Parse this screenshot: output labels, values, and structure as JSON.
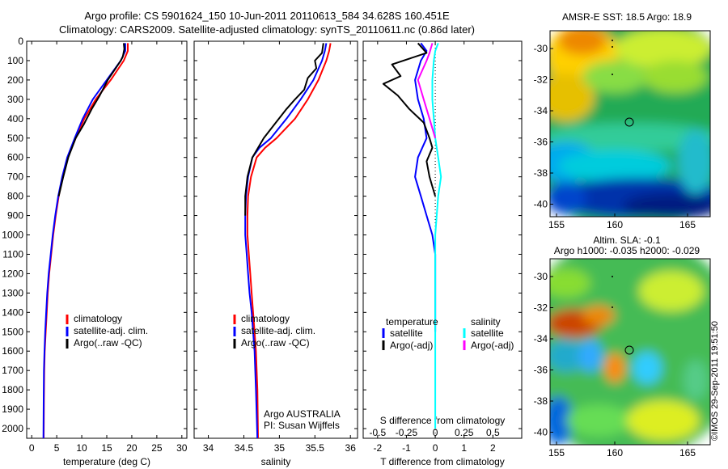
{
  "header": {
    "title_line1": "Argo profile: CS 5901624_150 10-Jun-2011 20110613_584 34.628S 160.451E",
    "title_line2": "Climatology: CARS2009. Satellite-adjusted climatology: synTS_20110611.nc (0.86d later)"
  },
  "stamp": "©IMOS 29-Sep-2011 19:51:50",
  "colors": {
    "climatology": "#ff0000",
    "satellite": "#0000ff",
    "argo": "#000000",
    "sat_s": "#00ffff",
    "argo_s": "#ff00ff"
  },
  "chart_data": [
    {
      "id": "temperature",
      "type": "line",
      "xlabel": "temperature (deg C)",
      "xlim": [
        -1,
        31
      ],
      "xticks": [
        0,
        5,
        10,
        15,
        20,
        25,
        30
      ],
      "ylim": [
        2050,
        0
      ],
      "yticks": [
        0,
        100,
        200,
        300,
        400,
        500,
        600,
        700,
        800,
        900,
        1000,
        1100,
        1200,
        1300,
        1400,
        1500,
        1600,
        1700,
        1800,
        1900,
        2000
      ],
      "legend": [
        "climatology",
        "satellite-adj. clim.",
        "Argo(..raw -QC)"
      ],
      "series": [
        {
          "name": "climatology",
          "color_key": "climatology",
          "x": [
            19.2,
            19.2,
            18.4,
            15.8,
            12.8,
            10.5,
            8.8,
            7.2,
            6.2,
            5.4,
            4.8,
            4.3,
            3.9,
            3.5,
            3.2,
            3.0,
            2.8,
            2.6,
            2.5,
            2.45,
            2.4
          ],
          "y": [
            10,
            50,
            100,
            200,
            300,
            400,
            500,
            600,
            700,
            800,
            900,
            1000,
            1100,
            1200,
            1300,
            1400,
            1500,
            1600,
            1700,
            1850,
            2050
          ]
        },
        {
          "name": "satellite-adj. clim.",
          "color_key": "satellite",
          "x": [
            18.7,
            18.7,
            17.8,
            15.0,
            12.2,
            10.2,
            8.6,
            7.1,
            6.1,
            5.3,
            4.7,
            4.2,
            3.8,
            3.4,
            3.1,
            2.9,
            2.7,
            2.55,
            2.45,
            2.4,
            2.35
          ],
          "y": [
            10,
            50,
            100,
            200,
            300,
            400,
            500,
            600,
            700,
            800,
            900,
            1000,
            1100,
            1200,
            1300,
            1400,
            1500,
            1600,
            1700,
            1850,
            2050
          ]
        },
        {
          "name": "Argo(..raw -QC)",
          "color_key": "argo",
          "x": [
            18.4,
            18.5,
            18.2,
            17.8,
            16.5,
            15.2,
            14.4,
            13.6,
            12.0,
            10.4,
            8.8,
            7.3,
            6.3,
            5.4
          ],
          "y": [
            10,
            40,
            80,
            100,
            150,
            200,
            240,
            280,
            350,
            430,
            500,
            600,
            700,
            800
          ]
        }
      ]
    },
    {
      "id": "salinity",
      "type": "line",
      "xlabel": "salinity",
      "xlim": [
        33.8,
        36.1
      ],
      "xticks": [
        34,
        34.5,
        35,
        35.5,
        36
      ],
      "ylim": [
        2050,
        0
      ],
      "legend": [
        "climatology",
        "satellite-adj. clim.",
        "Argo(..raw -QC)"
      ],
      "annotation": [
        "Argo AUSTRALIA",
        "PI: Susan Wijffels"
      ],
      "series": [
        {
          "name": "climatology",
          "color_key": "climatology",
          "x": [
            35.72,
            35.7,
            35.66,
            35.55,
            35.4,
            35.22,
            34.96,
            34.8,
            34.68,
            34.6,
            34.56,
            34.55,
            34.55,
            34.57,
            34.59,
            34.61,
            34.63,
            34.65,
            34.67,
            34.69,
            34.7
          ],
          "y": [
            10,
            50,
            100,
            200,
            300,
            400,
            500,
            550,
            600,
            700,
            800,
            900,
            1000,
            1100,
            1200,
            1300,
            1400,
            1500,
            1600,
            1800,
            2050
          ]
        },
        {
          "name": "satellite-adj. clim.",
          "color_key": "satellite",
          "x": [
            35.66,
            35.64,
            35.6,
            35.48,
            35.3,
            35.1,
            34.88,
            34.72,
            34.62,
            34.56,
            34.53,
            34.52,
            34.52,
            34.54,
            34.56,
            34.58,
            34.61,
            34.63,
            34.65,
            34.67,
            34.69
          ],
          "y": [
            10,
            50,
            100,
            200,
            300,
            400,
            500,
            550,
            600,
            700,
            800,
            900,
            1000,
            1100,
            1200,
            1300,
            1400,
            1500,
            1600,
            1800,
            2050
          ]
        },
        {
          "name": "Argo(..raw -QC)",
          "color_key": "argo",
          "x": [
            35.62,
            35.6,
            35.5,
            35.52,
            35.4,
            35.35,
            35.22,
            35.1,
            34.95,
            34.78,
            34.62,
            34.55,
            34.52,
            34.52
          ],
          "y": [
            10,
            60,
            100,
            140,
            190,
            250,
            300,
            350,
            420,
            500,
            600,
            700,
            800,
            900
          ]
        }
      ]
    },
    {
      "id": "difference",
      "type": "line",
      "xlabel": "T difference from climatology",
      "xlabel_top": "S difference from climatology",
      "xlim": [
        -2.5,
        3
      ],
      "xticks": [
        -2,
        -1,
        0,
        1,
        2
      ],
      "s_ticks": [
        "-0.5",
        "-0.25",
        "0",
        "0.25",
        "0.5"
      ],
      "ylim": [
        2050,
        0
      ],
      "legend": {
        "temperature": [
          "temperature",
          "satellite",
          "Argo(-adj)"
        ],
        "salinity": [
          "salinity",
          "satellite",
          "Argo(-adj)"
        ]
      },
      "series": [
        {
          "name": "satellite",
          "color_key": "satellite",
          "x": [
            -0.5,
            -0.3,
            -0.5,
            -0.7,
            -0.6,
            -0.4,
            -0.3,
            -0.6,
            -0.7,
            -0.5,
            -0.3,
            -0.1,
            0.0,
            0.0,
            0.0,
            0.0
          ],
          "y": [
            10,
            50,
            100,
            200,
            300,
            400,
            500,
            600,
            700,
            800,
            900,
            1000,
            1100,
            1200,
            1300,
            1500
          ]
        },
        {
          "name": "Argo(-adj)",
          "color_key": "argo",
          "x": [
            -0.6,
            -0.3,
            -1.5,
            -1.2,
            -1.8,
            -1.3,
            -0.9,
            -0.4,
            -0.2,
            -0.1,
            -0.3,
            -0.2,
            -0.1,
            0.0
          ],
          "y": [
            10,
            60,
            120,
            180,
            220,
            280,
            350,
            420,
            500,
            550,
            620,
            700,
            750,
            800
          ]
        },
        {
          "name": "satellite",
          "color_key": "sat_s",
          "x": [
            0.1,
            0.0,
            -0.05,
            -0.1,
            -0.1,
            -0.05,
            0.0,
            0.1,
            0.2,
            0.1,
            0.05,
            0.0,
            0.0,
            0.0
          ],
          "y": [
            10,
            50,
            100,
            200,
            300,
            400,
            500,
            600,
            700,
            800,
            900,
            1000,
            1200,
            2000
          ]
        },
        {
          "name": "Argo(-adj)",
          "color_key": "argo_s",
          "x": [
            -0.1,
            -0.2,
            -0.3,
            -0.6,
            -0.4,
            -0.2,
            0.0
          ],
          "y": [
            10,
            60,
            100,
            200,
            300,
            400,
            500
          ]
        }
      ]
    }
  ],
  "maps": [
    {
      "id": "sst",
      "title_lines": [
        "AMSR-E SST: 18.5 Argo: 18.9"
      ],
      "xticks": [
        "155",
        "160",
        "165"
      ],
      "yticks": [
        "-30",
        "-32",
        "-34",
        "-36",
        "-38",
        "-40"
      ]
    },
    {
      "id": "sla",
      "title_lines": [
        "Altim. SLA: -0.1",
        "Argo h1000: -0.035 h2000: -0.029"
      ],
      "xticks": [
        "155",
        "160",
        "165"
      ],
      "yticks": [
        "-30",
        "-32",
        "-34",
        "-36",
        "-38",
        "-40"
      ]
    }
  ]
}
